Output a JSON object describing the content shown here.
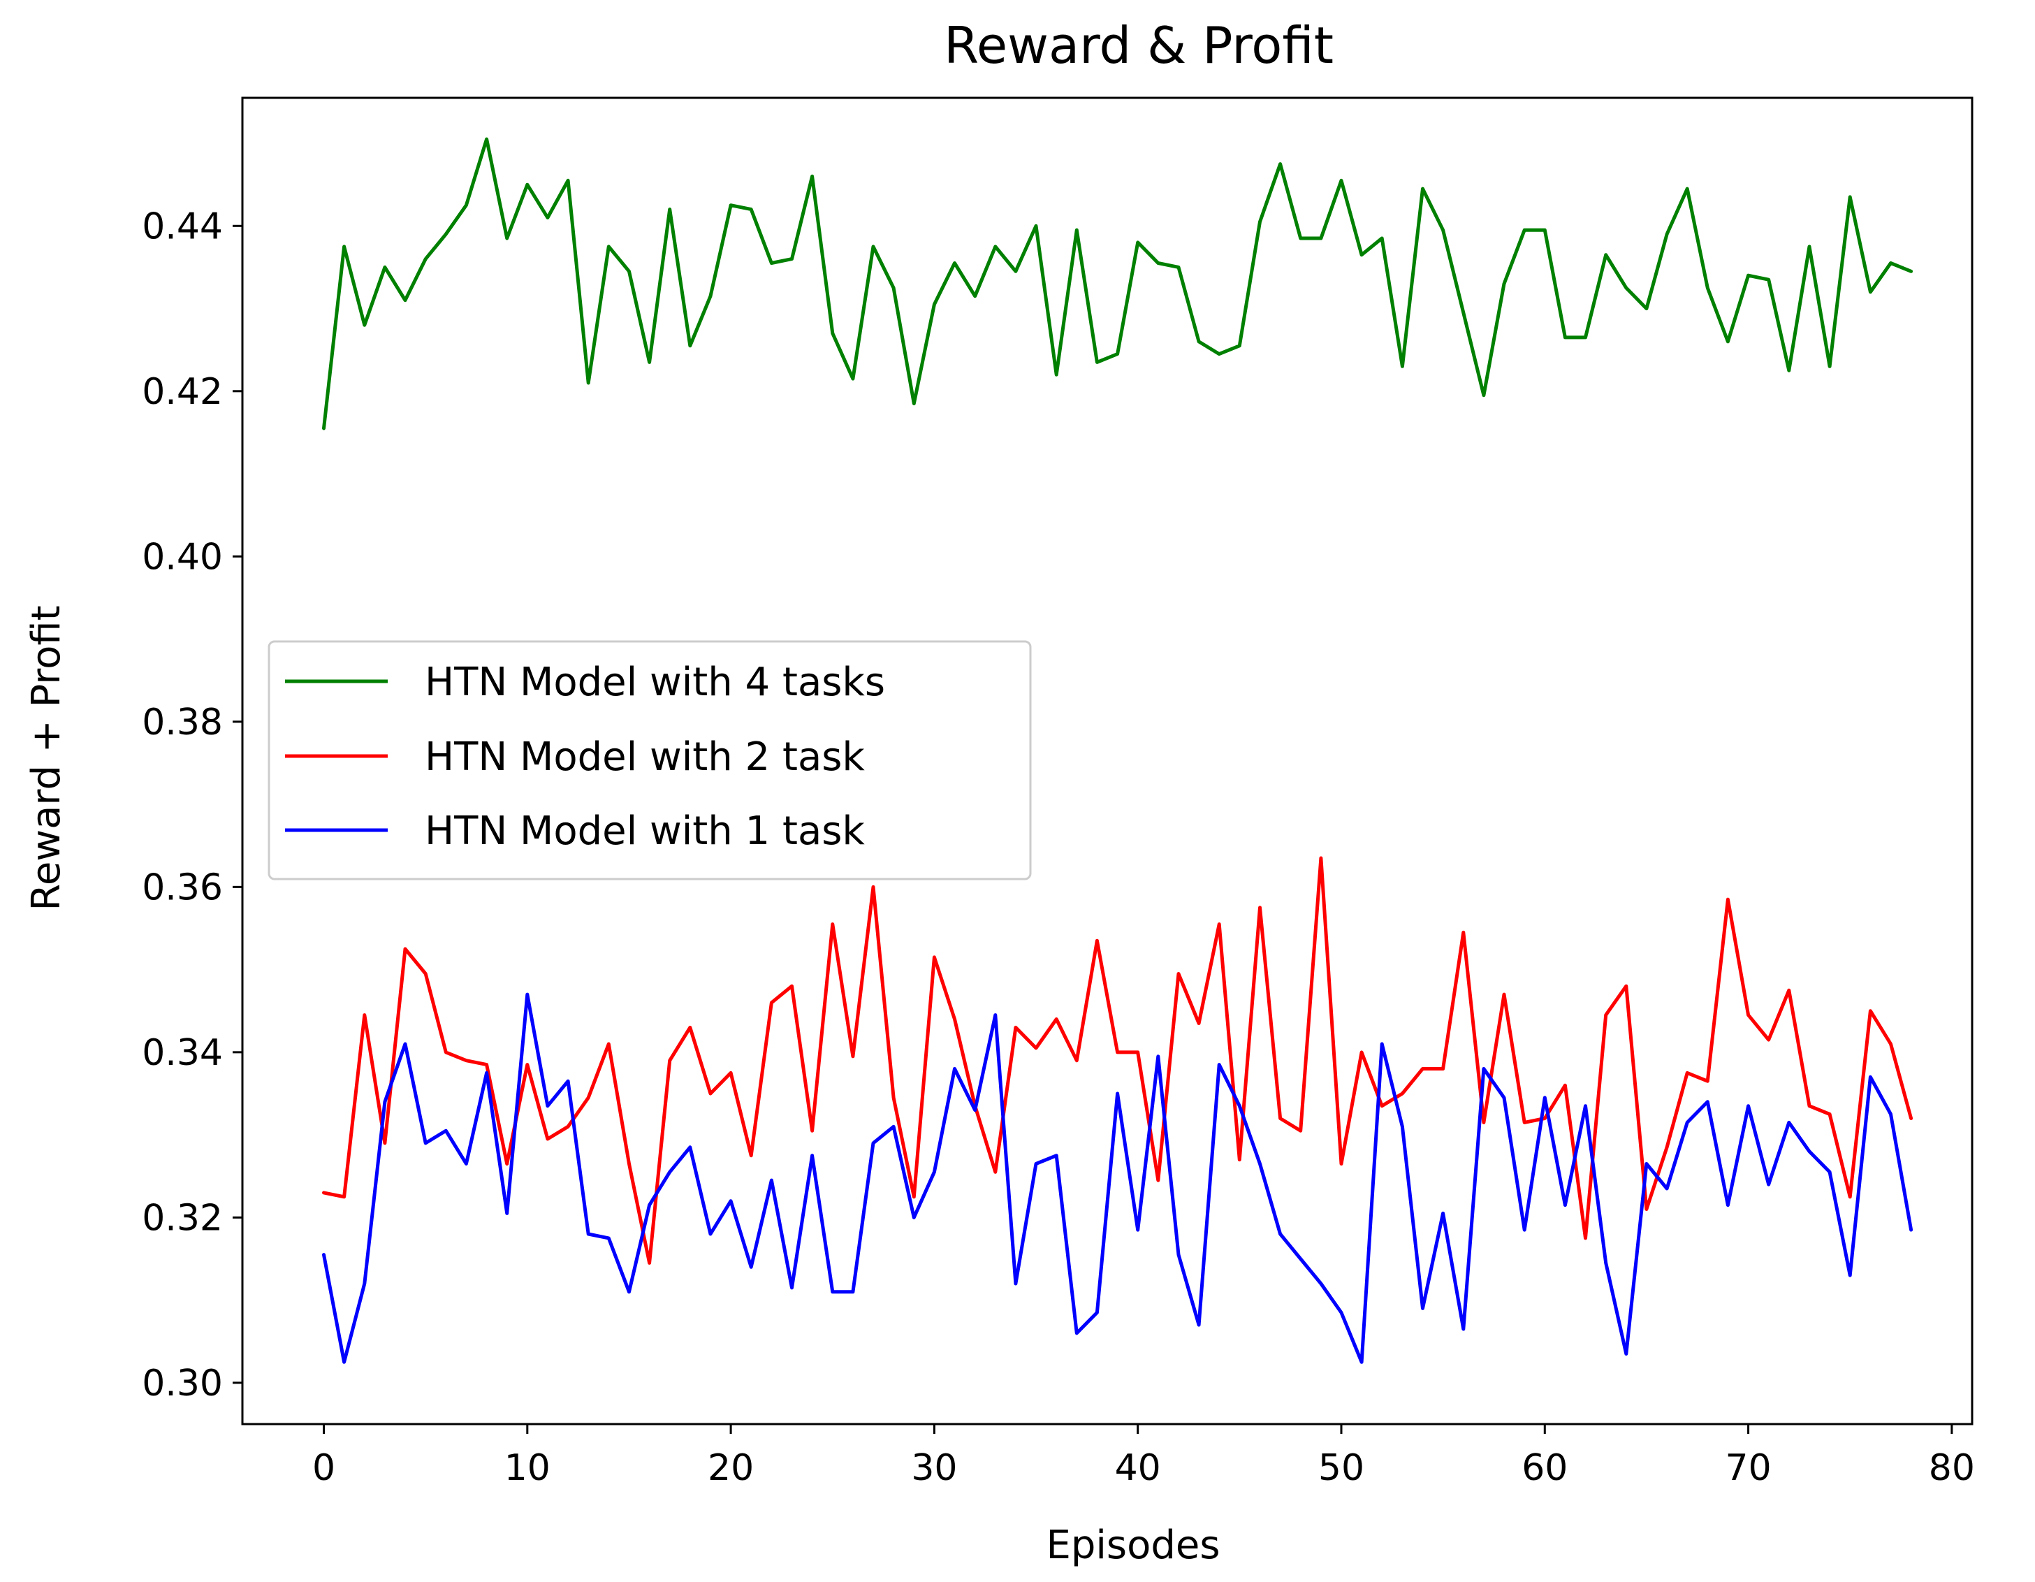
{
  "chart_data": {
    "type": "line",
    "title": "Reward & Profit",
    "xlabel": "Episodes",
    "ylabel": "Reward  + Profit",
    "xlim": [
      -4,
      81
    ],
    "ylim": [
      0.295,
      0.4555
    ],
    "xticks": [
      0,
      10,
      20,
      30,
      40,
      50,
      60,
      70,
      80
    ],
    "xtick_labels": [
      "0",
      "10",
      "20",
      "30",
      "40",
      "50",
      "60",
      "70",
      "80"
    ],
    "yticks": [
      0.3,
      0.32,
      0.34,
      0.36,
      0.38,
      0.4,
      0.42,
      0.44
    ],
    "ytick_labels": [
      "0.30",
      "0.32",
      "0.34",
      "0.36",
      "0.38",
      "0.40",
      "0.42",
      "0.44"
    ],
    "grid": false,
    "legend_position": "center-left",
    "series": [
      {
        "name": "HTN Model with 4 tasks",
        "color": "#008000",
        "values": [
          0.4155,
          0.4375,
          0.428,
          0.435,
          0.431,
          0.436,
          0.439,
          0.4425,
          0.4505,
          0.4385,
          0.445,
          0.441,
          0.4455,
          0.421,
          0.4375,
          0.4345,
          0.4235,
          0.442,
          0.4255,
          0.4315,
          0.4425,
          0.442,
          0.4355,
          0.436,
          0.446,
          0.427,
          0.4215,
          0.4375,
          0.4325,
          0.4185,
          0.4305,
          0.4355,
          0.4315,
          0.4375,
          0.4345,
          0.44,
          0.422,
          0.4395,
          0.4235,
          0.4245,
          0.438,
          0.4355,
          0.435,
          0.426,
          0.4245,
          0.4255,
          0.4405,
          0.4475,
          0.4385,
          0.4385,
          0.4455,
          0.4365,
          0.4385,
          0.423,
          0.4445,
          0.4395,
          0.4295,
          0.4195,
          0.433,
          0.4395,
          0.4395,
          0.4265,
          0.4265,
          0.4365,
          0.4325,
          0.43,
          0.439,
          0.4445,
          0.4325,
          0.426,
          0.434,
          0.4335,
          0.4225,
          0.4375,
          0.423,
          0.4435,
          0.432,
          0.4355,
          0.4345
        ]
      },
      {
        "name": "HTN Model with 2 task",
        "color": "#ff0000",
        "values": [
          0.323,
          0.3225,
          0.3445,
          0.329,
          0.3525,
          0.3495,
          0.34,
          0.339,
          0.3385,
          0.3265,
          0.3385,
          0.3295,
          0.331,
          0.3345,
          0.341,
          0.3265,
          0.3145,
          0.339,
          0.343,
          0.335,
          0.3375,
          0.3275,
          0.346,
          0.348,
          0.3305,
          0.3555,
          0.3395,
          0.36,
          0.3345,
          0.3225,
          0.3515,
          0.344,
          0.3335,
          0.3255,
          0.343,
          0.3405,
          0.344,
          0.339,
          0.3535,
          0.34,
          0.34,
          0.3245,
          0.3495,
          0.3435,
          0.3555,
          0.327,
          0.3575,
          0.332,
          0.3305,
          0.3635,
          0.3265,
          0.34,
          0.3335,
          0.335,
          0.338,
          0.338,
          0.3545,
          0.3315,
          0.347,
          0.3315,
          0.332,
          0.336,
          0.3175,
          0.3445,
          0.348,
          0.321,
          0.3285,
          0.3375,
          0.3365,
          0.3585,
          0.3445,
          0.3415,
          0.3475,
          0.3335,
          0.3325,
          0.3225,
          0.345,
          0.341,
          0.332
        ]
      },
      {
        "name": "HTN Model with 1 task",
        "color": "#0000ff",
        "values": [
          0.3155,
          0.3025,
          0.312,
          0.334,
          0.341,
          0.329,
          0.3305,
          0.3265,
          0.3375,
          0.3205,
          0.347,
          0.3335,
          0.3365,
          0.318,
          0.3175,
          0.311,
          0.3215,
          0.3255,
          0.3285,
          0.318,
          0.322,
          0.314,
          0.3245,
          0.3115,
          0.3275,
          0.311,
          0.311,
          0.329,
          0.331,
          0.32,
          0.3255,
          0.338,
          0.333,
          0.3445,
          0.312,
          0.3265,
          0.3275,
          0.306,
          0.3085,
          0.335,
          0.3185,
          0.3395,
          0.3155,
          0.307,
          0.3385,
          0.3335,
          0.3265,
          0.318,
          0.315,
          0.312,
          0.3085,
          0.3025,
          0.341,
          0.331,
          0.309,
          0.3205,
          0.3065,
          0.338,
          0.3345,
          0.3185,
          0.3345,
          0.3215,
          0.3335,
          0.3145,
          0.3035,
          0.3265,
          0.3235,
          0.3315,
          0.334,
          0.3215,
          0.3335,
          0.324,
          0.3315,
          0.328,
          0.3255,
          0.313,
          0.337,
          0.3325,
          0.3185
        ]
      }
    ]
  }
}
